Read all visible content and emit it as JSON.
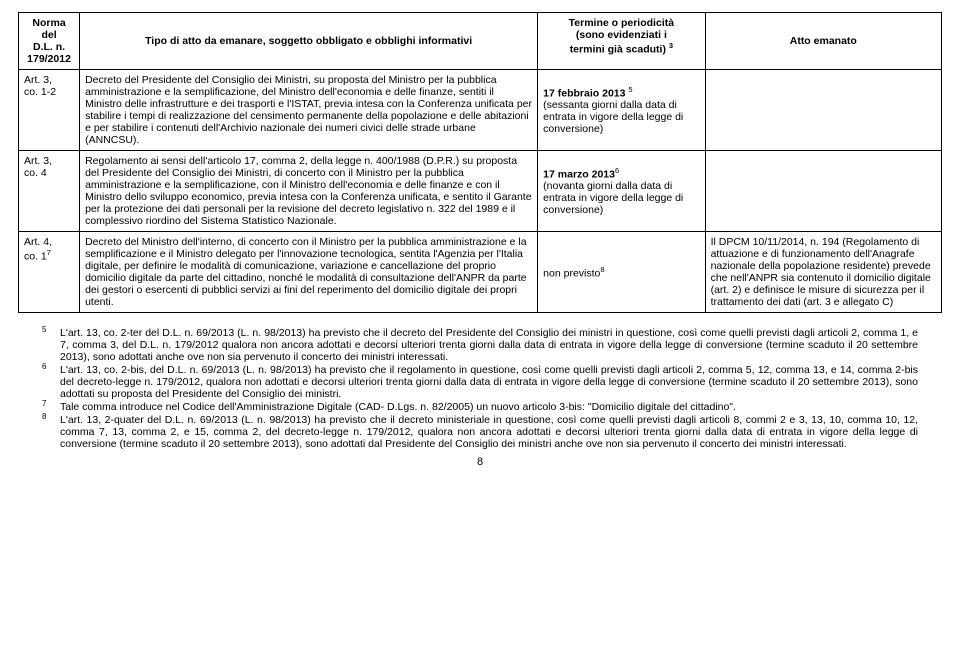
{
  "colors": {
    "text": "#000000",
    "bg": "#ffffff",
    "border": "#000000"
  },
  "header": {
    "c1a": "Norma del",
    "c1b": "D.L. n.",
    "c1c": "179/2012",
    "c2": "Tipo di atto da emanare, soggetto obbligato e obblighi informativi",
    "c3a": "Termine o periodicità",
    "c3b": "(sono evidenziati i",
    "c3c": "termini già scaduti)",
    "c3sup": "3",
    "c4": "Atto emanato"
  },
  "rows": [
    {
      "norma_l1": "Art. 3,",
      "norma_l2": "co. 1-2",
      "testo": "Decreto del Presidente del Consiglio dei Ministri, su proposta del Ministro per la pubblica amministrazione e la semplificazione, del Ministro dell'economia e delle finanze, sentiti il Ministro delle infrastrutture e dei trasporti e l'ISTAT, previa intesa con la Conferenza unificata per stabilire i tempi di realizzazione del censimento permanente della popolazione e delle abitazioni e per stabilire i contenuti dell'Archivio nazionale dei numeri civici delle strade urbane (ANNCSU).",
      "term_bold": "17 febbraio 2013",
      "term_sup": "5",
      "term_rest": "(sessanta giorni dalla data di entrata in vigore della legge di conversione)",
      "atto": ""
    },
    {
      "norma_l1": "Art. 3,",
      "norma_l2": "co. 4",
      "testo": "Regolamento ai sensi dell'articolo 17, comma 2, della legge n. 400/1988 (D.P.R.) su proposta del Presidente del Consiglio dei Ministri, di concerto con il Ministro per la pubblica amministrazione e la semplificazione, con il Ministro dell'economia e delle finanze e con il Ministro dello sviluppo economico, previa intesa con la Conferenza unificata, e sentito il Garante per la protezione dei dati personali per la revisione del decreto legislativo n. 322 del 1989 e il complessivo riordino del Sistema Statistico Nazionale.",
      "term_bold": "17 marzo 2013",
      "term_sup": "6",
      "term_rest": "(novanta giorni dalla data di entrata in vigore della legge di conversione)",
      "atto": ""
    },
    {
      "norma_l1": "Art. 4,",
      "norma_l2": "co. 1",
      "norma_sup": "7",
      "testo": "Decreto del Ministro dell'interno, di concerto con il Ministro per la pubblica amministrazione e la semplificazione e il Ministro delegato per l'innovazione tecnologica, sentita l'Agenzia per l'Italia digitale, per definire le modalità di comunicazione, variazione e cancellazione del proprio domicilio digitale da parte del cittadino, nonché le modalità di consultazione dell'ANPR da parte dei gestori o esercenti di pubblici servizi ai fini del reperimento del domicilio digitale dei propri utenti.",
      "term_plain": "non previsto",
      "term_sup": "8",
      "term_rest": "",
      "atto": "Il DPCM 10/11/2014, n. 194 (Regolamento di attuazione e di funzionamento dell'Anagrafe nazionale della popolazione residente) prevede che nell'ANPR sia contenuto il domicilio digitale (art. 2) e definisce le misure di sicurezza per il trattamento dei dati (art. 3 e allegato C)"
    }
  ],
  "footnotes": [
    {
      "n": "5",
      "t": "L'art. 13, co. 2-ter del D.L. n. 69/2013 (L. n. 98/2013) ha previsto che il decreto del Presidente del Consiglio dei ministri in questione, così come quelli previsti dagli articoli 2, comma 1, e 7, comma 3, del D.L. n. 179/2012 qualora non ancora adottati e decorsi ulteriori trenta giorni dalla data di entrata in vigore della legge di conversione (termine scaduto il 20 settembre 2013), sono adottati anche ove non sia pervenuto il concerto dei ministri interessati."
    },
    {
      "n": "6",
      "t": "L'art. 13, co. 2-bis, del D.L. n. 69/2013 (L. n. 98/2013) ha previsto che il regolamento in questione, così come quelli previsti dagli articoli 2, comma 5, 12, comma 13, e 14, comma 2-bis del decreto-legge n. 179/2012, qualora non adottati e decorsi ulteriori trenta giorni dalla data di entrata in vigore della legge di conversione (termine scaduto il 20 settembre 2013), sono adottati su proposta del Presidente del Consiglio dei ministri."
    },
    {
      "n": "7",
      "t": "Tale comma introduce nel Codice dell'Amministrazione Digitale (CAD- D.Lgs. n. 82/2005) un nuovo articolo 3-bis: \"Domicilio digitale del cittadino\"."
    },
    {
      "n": "8",
      "t": "L'art. 13, 2-quater del D.L. n. 69/2013 (L. n. 98/2013) ha previsto che il decreto ministeriale in questione, così come quelli previsti dagli articoli 8, commi 2 e 3, 13, 10, comma 10, 12, comma 7, 13, comma 2, e 15, comma 2, del decreto-legge n. 179/2012, qualora non ancora adottati e decorsi ulteriori trenta giorni dalla data di entrata in vigore della legge di conversione (termine scaduto il 20 settembre 2013), sono adottati dal Presidente del Consiglio dei ministri anche ove non sia pervenuto il concerto dei ministri interessati."
    }
  ],
  "pagenum": "8"
}
